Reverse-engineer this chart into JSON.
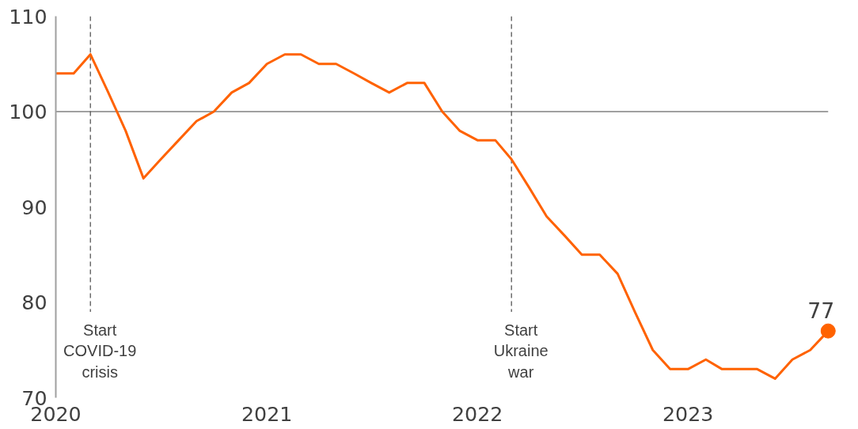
{
  "chart_data": {
    "type": "line",
    "x": [
      "2020-01",
      "2020-02",
      "2020-03",
      "2020-04",
      "2020-05",
      "2020-06",
      "2020-07",
      "2020-08",
      "2020-09",
      "2020-10",
      "2020-11",
      "2020-12",
      "2021-01",
      "2021-02",
      "2021-03",
      "2021-04",
      "2021-05",
      "2021-06",
      "2021-07",
      "2021-08",
      "2021-09",
      "2021-10",
      "2021-11",
      "2021-12",
      "2022-01",
      "2022-02",
      "2022-03",
      "2022-04",
      "2022-05",
      "2022-06",
      "2022-07",
      "2022-08",
      "2022-09",
      "2022-10",
      "2022-11",
      "2022-12",
      "2023-01",
      "2023-02",
      "2023-03",
      "2023-04",
      "2023-05",
      "2023-06",
      "2023-07",
      "2023-08",
      "2023-09"
    ],
    "series": [
      {
        "color": "#ff6200",
        "values": [
          104,
          104,
          106,
          102,
          98,
          93,
          95,
          97,
          99,
          100,
          102,
          103,
          105,
          106,
          106,
          105,
          105,
          104,
          103,
          102,
          103,
          103,
          100,
          98,
          97,
          97,
          95,
          92,
          89,
          87,
          85,
          85,
          83,
          79,
          75,
          73,
          73,
          74,
          73,
          73,
          73,
          72,
          74,
          75,
          77
        ]
      },
      {
        "type": "scatter",
        "color": "#ff6200",
        "x": [
          "2023-09"
        ],
        "values": [
          77
        ]
      }
    ],
    "xlim": [
      "2020-01",
      "2023-09"
    ],
    "xticks": [
      {
        "value": "2020-01",
        "label": "2020"
      },
      {
        "value": "2021-01",
        "label": "2021"
      },
      {
        "value": "2022-01",
        "label": "2022"
      },
      {
        "value": "2023-01",
        "label": "2023"
      }
    ],
    "ylim": [
      70,
      110
    ],
    "yticks": [
      70,
      80,
      90,
      100,
      110
    ],
    "grid": false,
    "ref_lines": [
      {
        "axis": "y",
        "value": 100,
        "color": "#a0a0a0",
        "line_style": "solid"
      },
      {
        "axis": "x",
        "value": "2020-03",
        "label": "Start\nCOVID-19\ncrisis",
        "color": "#555555",
        "line_style": "dashed"
      },
      {
        "axis": "x",
        "value": "2022-03",
        "label": "Start\nUkraine\nwar",
        "color": "#555555",
        "line_style": "dashed"
      }
    ],
    "annotations": [
      {
        "text": "77",
        "x": "2023-09",
        "y": 77
      }
    ]
  }
}
